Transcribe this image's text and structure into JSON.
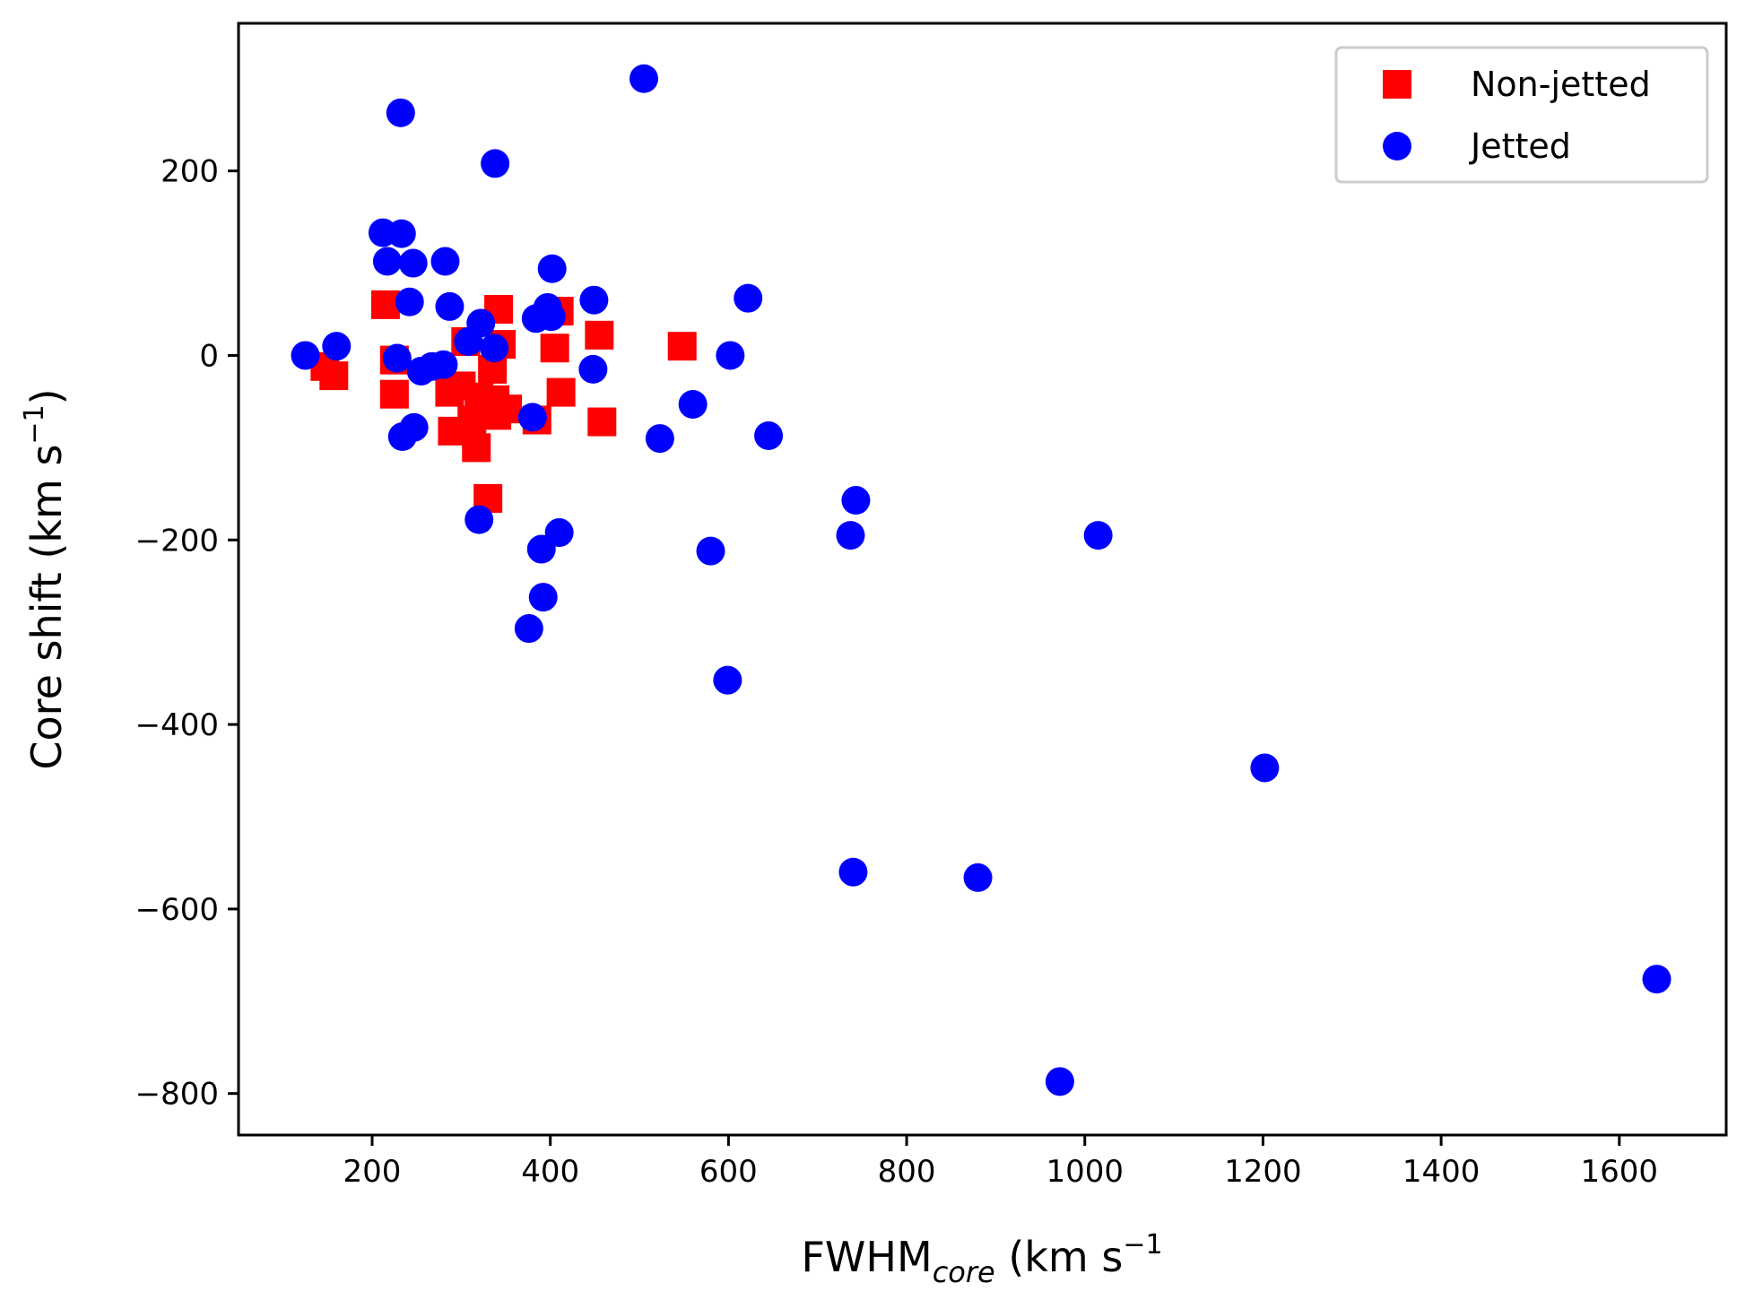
{
  "chart_data": {
    "type": "scatter",
    "xlabel": "FWHM",
    "xlabel_subscript": "core",
    "xlabel_units": " (km s",
    "xlabel_units_close": ")",
    "units_exponent": "−1",
    "ylabel": "Core shift (km s",
    "ylabel_close": ")",
    "xlim": [
      50,
      1720
    ],
    "ylim": [
      -845,
      360
    ],
    "xticks": [
      200,
      400,
      600,
      800,
      1000,
      1200,
      1400,
      1600
    ],
    "yticks": [
      200,
      0,
      -200,
      -400,
      -600,
      -800
    ],
    "xtick_labels": [
      "200",
      "400",
      "600",
      "800",
      "1000",
      "1200",
      "1400",
      "1600"
    ],
    "ytick_labels": [
      "200",
      "0",
      "−200",
      "−400",
      "−600",
      "−800"
    ],
    "legend_position": "top-right",
    "series": [
      {
        "name": "Non-jetted",
        "marker": "square",
        "color": "#ff0000",
        "points": [
          [
            147,
            -12
          ],
          [
            157,
            -22
          ],
          [
            215,
            55
          ],
          [
            225,
            -5
          ],
          [
            225,
            -42
          ],
          [
            287,
            -40
          ],
          [
            290,
            -82
          ],
          [
            300,
            -33
          ],
          [
            305,
            15
          ],
          [
            312,
            -70
          ],
          [
            317,
            -100
          ],
          [
            320,
            -45
          ],
          [
            325,
            -60
          ],
          [
            330,
            -155
          ],
          [
            335,
            -15
          ],
          [
            338,
            -48
          ],
          [
            340,
            -65
          ],
          [
            342,
            50
          ],
          [
            345,
            12
          ],
          [
            352,
            -58
          ],
          [
            385,
            -70
          ],
          [
            405,
            8
          ],
          [
            410,
            48
          ],
          [
            412,
            -40
          ],
          [
            455,
            22
          ],
          [
            458,
            -72
          ],
          [
            548,
            10
          ]
        ]
      },
      {
        "name": "Jetted",
        "marker": "circle",
        "color": "#0000ff",
        "points": [
          [
            125,
            0
          ],
          [
            160,
            10
          ],
          [
            212,
            133
          ],
          [
            217,
            102
          ],
          [
            228,
            -3
          ],
          [
            232,
            263
          ],
          [
            233,
            132
          ],
          [
            234,
            -88
          ],
          [
            242,
            58
          ],
          [
            246,
            100
          ],
          [
            247,
            -78
          ],
          [
            255,
            -17
          ],
          [
            267,
            -12
          ],
          [
            280,
            -10
          ],
          [
            282,
            102
          ],
          [
            287,
            53
          ],
          [
            308,
            15
          ],
          [
            320,
            -178
          ],
          [
            322,
            35
          ],
          [
            337,
            8
          ],
          [
            338,
            208
          ],
          [
            376,
            -296
          ],
          [
            380,
            -67
          ],
          [
            384,
            40
          ],
          [
            390,
            -210
          ],
          [
            392,
            -262
          ],
          [
            397,
            52
          ],
          [
            401,
            42
          ],
          [
            402,
            94
          ],
          [
            410,
            -192
          ],
          [
            448,
            -15
          ],
          [
            449,
            60
          ],
          [
            505,
            300
          ],
          [
            523,
            -90
          ],
          [
            560,
            -53
          ],
          [
            580,
            -212
          ],
          [
            599,
            -352
          ],
          [
            602,
            0
          ],
          [
            622,
            62
          ],
          [
            645,
            -87
          ],
          [
            737,
            -195
          ],
          [
            740,
            -560
          ],
          [
            743,
            -157
          ],
          [
            880,
            -566
          ],
          [
            972,
            -787
          ],
          [
            1015,
            -195
          ],
          [
            1202,
            -447
          ],
          [
            1642,
            -676
          ]
        ]
      }
    ]
  }
}
